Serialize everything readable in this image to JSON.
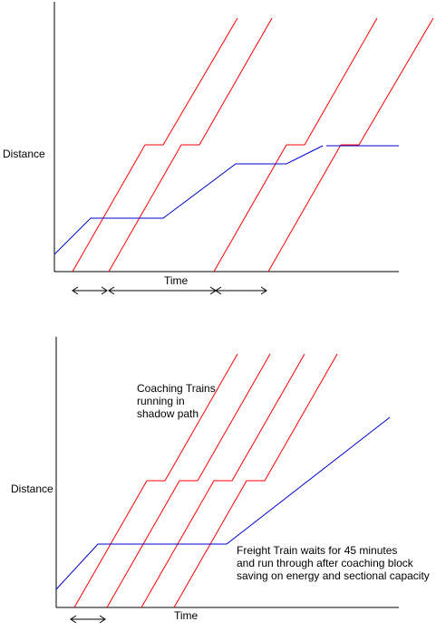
{
  "colors": {
    "coaching": "#ff0000",
    "freight": "#0000cc",
    "axis": "#000000",
    "arrow": "#000000"
  },
  "diagram1": {
    "y_axis_label": "Distance",
    "x_axis_label": "Time"
  },
  "diagram2": {
    "y_axis_label": "Distance",
    "x_axis_label": "Time",
    "coaching_note": [
      "Coaching Trains",
      "running in",
      "shadow path"
    ],
    "freight_note": [
      "Freight Train waits for 45 minutes",
      "and run through after coaching block",
      "saving on energy and sectional capacity"
    ]
  }
}
